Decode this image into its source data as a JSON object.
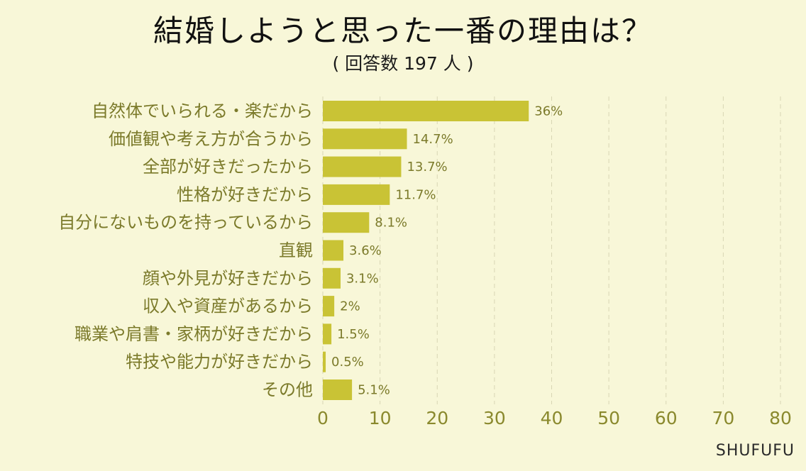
{
  "chart_data": {
    "type": "bar",
    "orientation": "horizontal",
    "title": "結婚しようと思った一番の理由は？",
    "subtitle": "( 回答数 197 人 )",
    "categories": [
      "自然体でいられる・楽だから",
      "価値観や考え方が合うから",
      "全部が好きだったから",
      "性格が好きだから",
      "自分にないものを持っているから",
      "直観",
      "顔や外見が好きだから",
      "収入や資産があるから",
      "職業や肩書・家柄が好きだから",
      "特技や能力が好きだから",
      "その他"
    ],
    "values": [
      36,
      14.7,
      13.7,
      11.7,
      8.1,
      3.6,
      3.1,
      2,
      1.5,
      0.5,
      5.1
    ],
    "value_labels": [
      "36%",
      "14.7%",
      "13.7%",
      "11.7%",
      "8.1%",
      "3.6%",
      "3.1%",
      "2%",
      "1.5%",
      "0.5%",
      "5.1%"
    ],
    "xlim": [
      0,
      80
    ],
    "xticks": [
      0,
      10,
      20,
      30,
      40,
      50,
      60,
      70,
      80
    ],
    "grid": "vertical-dashed",
    "bar_color": "#c9c335",
    "background": "#f8f7d8",
    "label_color": "#7b7a2a"
  },
  "brand": "SHUFUFU"
}
